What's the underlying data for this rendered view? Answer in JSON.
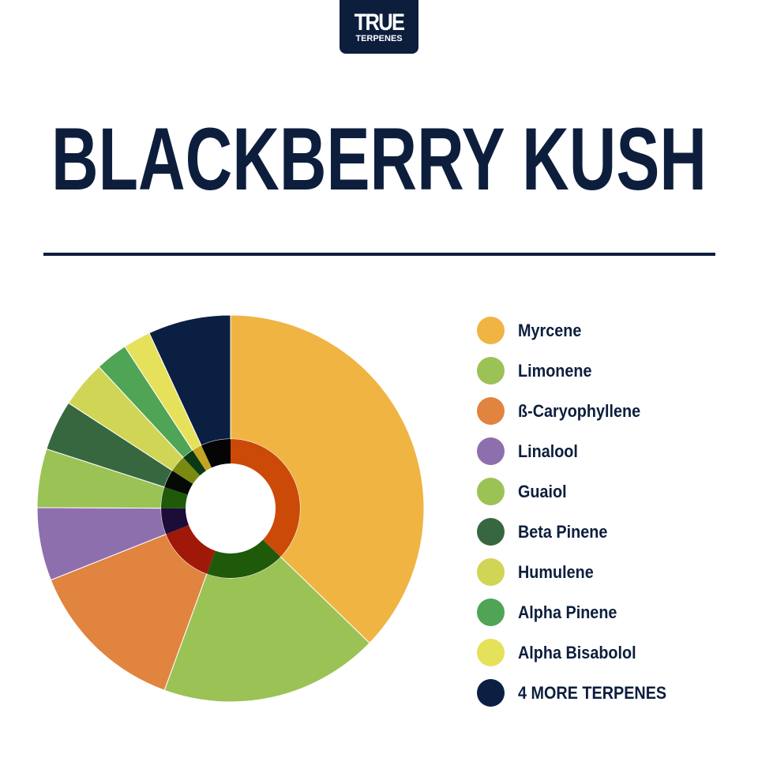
{
  "logo": {
    "line1": "TRUE",
    "line2": "TERPENES"
  },
  "title": "BLACKBERRY KUSH",
  "chart_data": {
    "type": "pie",
    "style": "donut with darker inner ring",
    "categories": [
      "Myrcene",
      "Limonene",
      "ß-Caryophyllene",
      "Linalool",
      "Guaiol",
      "Beta Pinene",
      "Humulene",
      "Alpha Pinene",
      "Alpha Bisabolol",
      "4 MORE TERPENES"
    ],
    "values": [
      37.2,
      18.3,
      13.4,
      6.1,
      4.9,
      4.2,
      3.9,
      2.7,
      2.3,
      6.9
    ],
    "colors": [
      "#f0b443",
      "#9bc255",
      "#e0843f",
      "#8e6fad",
      "#9bc255",
      "#37673f",
      "#d0d555",
      "#4fa455",
      "#e6e15a",
      "#0b1f42"
    ],
    "inner_colors": [
      "#cc4a08",
      "#1f5a0a",
      "#a01808",
      "#1c0c38",
      "#1f5a0a",
      "#050a05",
      "#7a8a10",
      "#0a3a12",
      "#c4a422",
      "#050505"
    ],
    "legend_position": "right"
  }
}
